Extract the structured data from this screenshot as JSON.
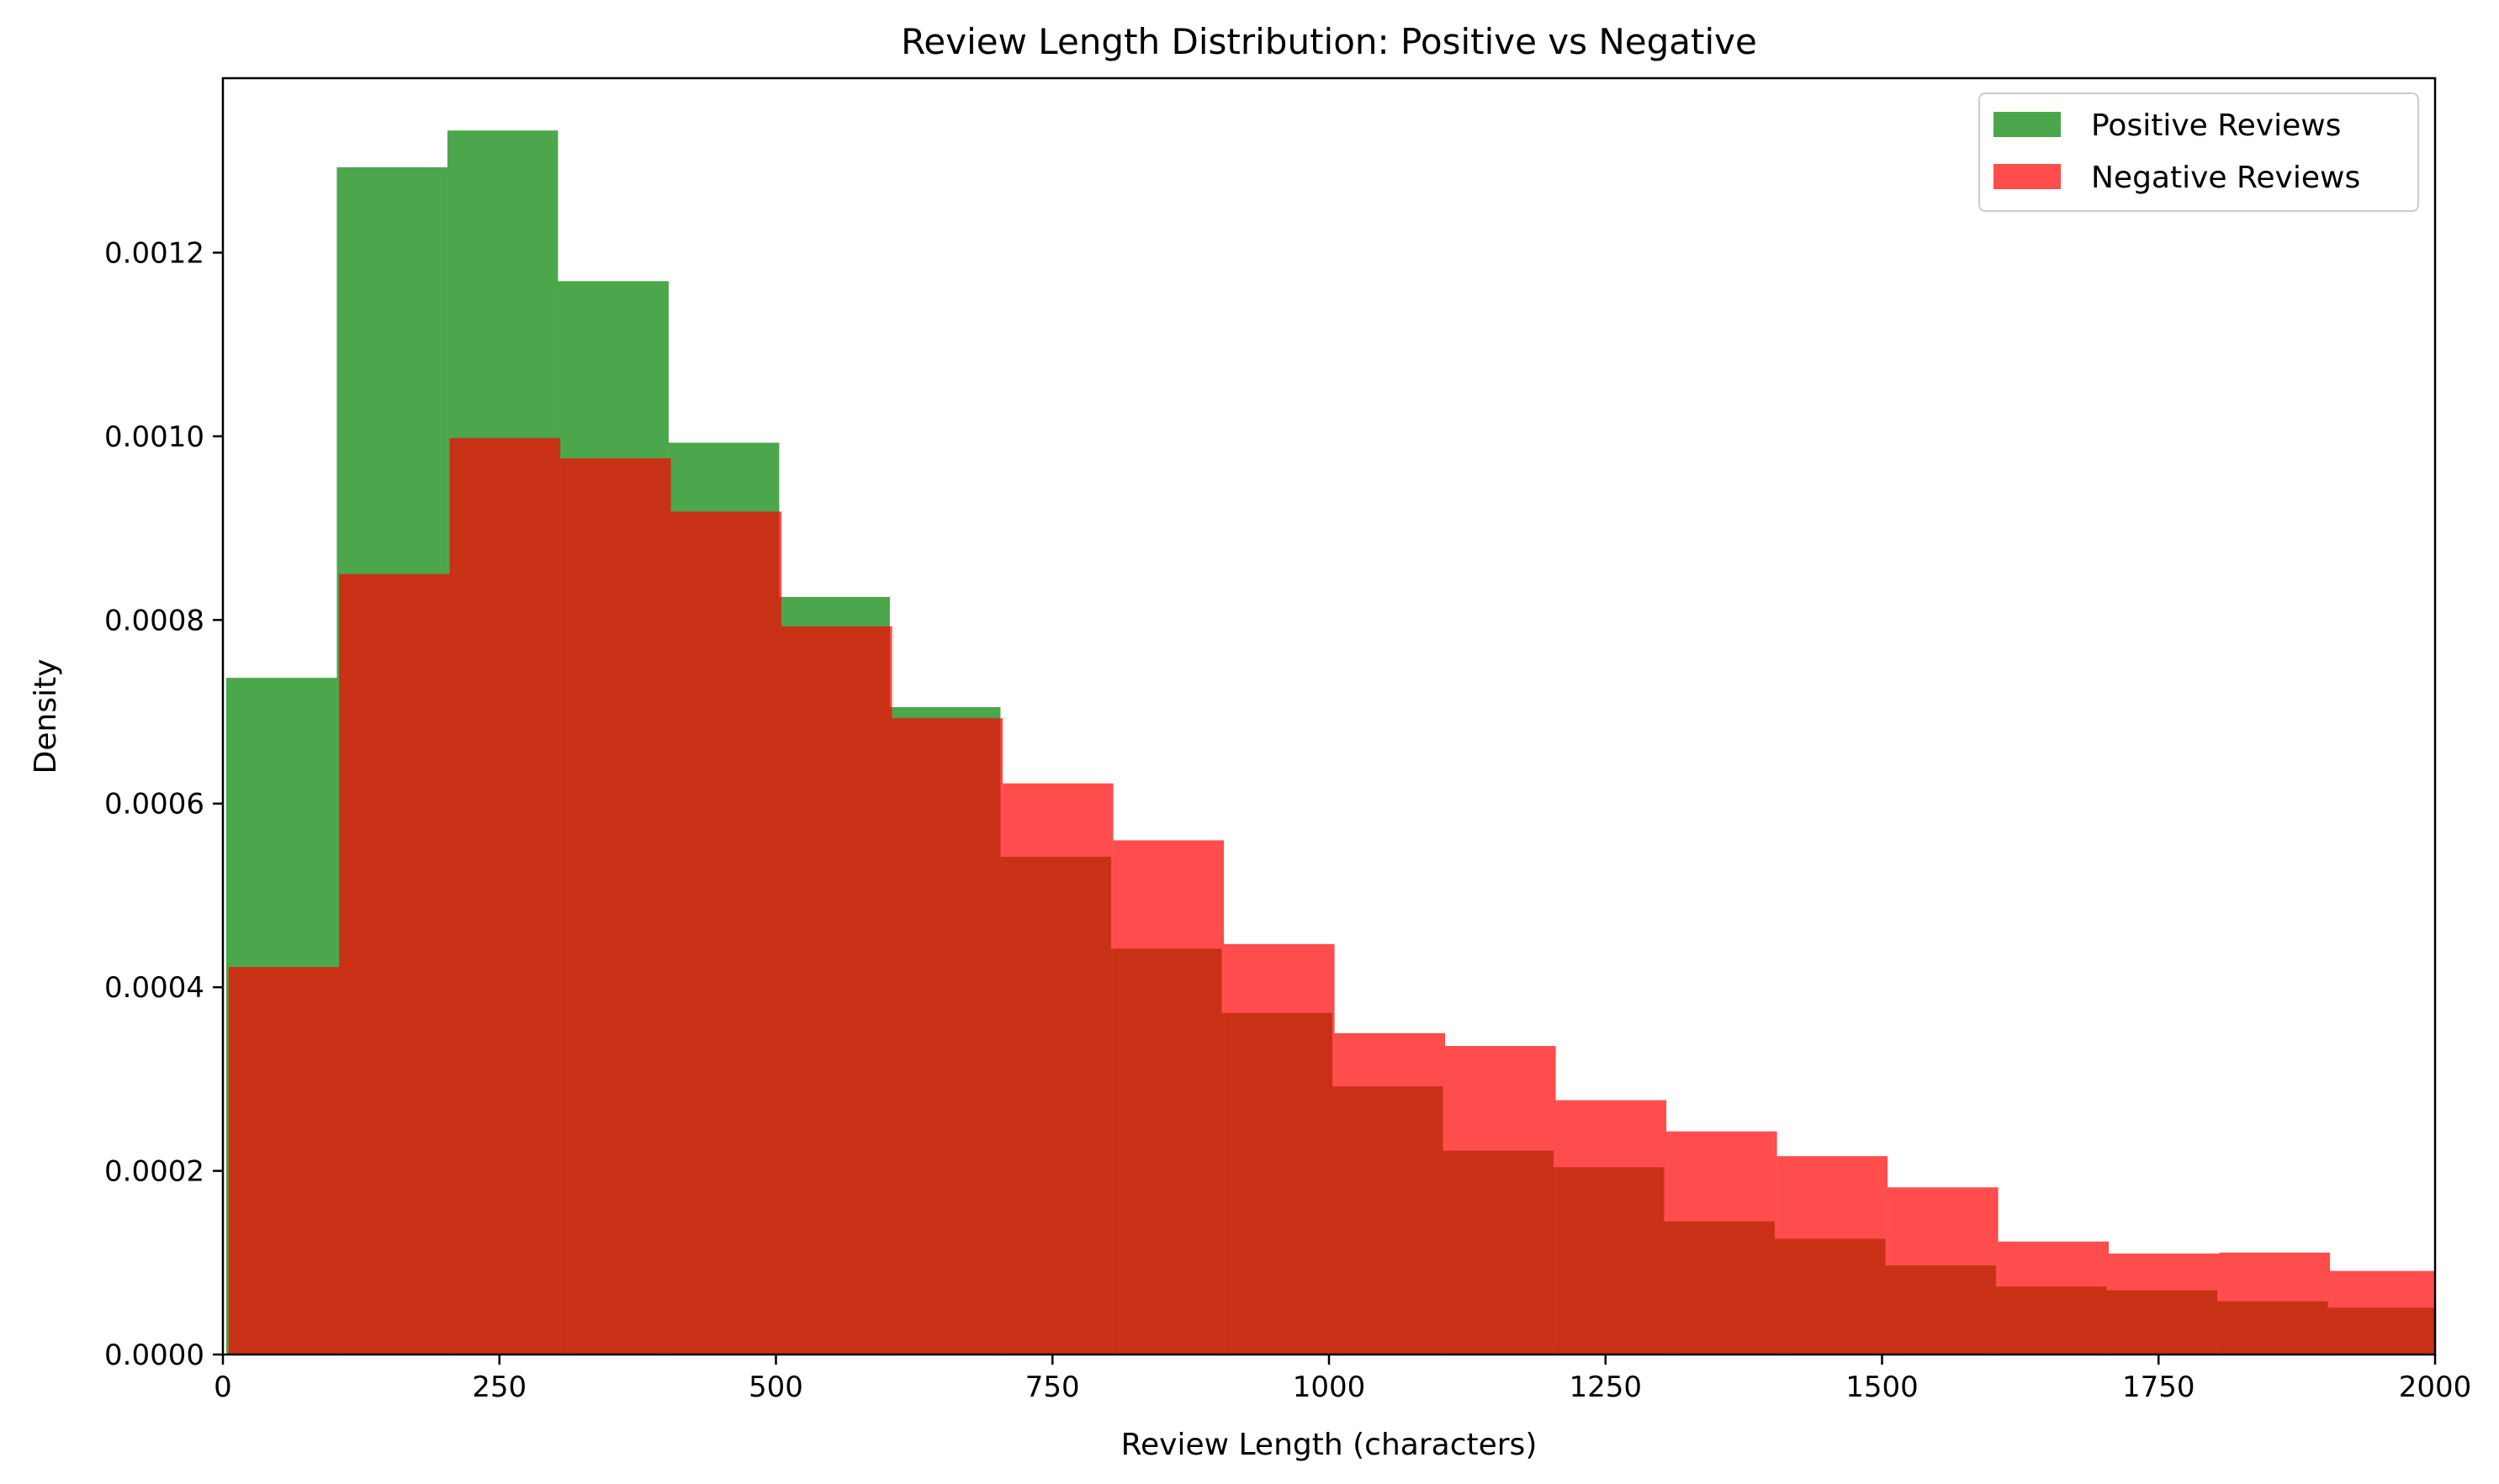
{
  "chart_data": {
    "type": "histogram",
    "title": "Review Length Distribution: Positive vs Negative",
    "xlabel": "Review Length (characters)",
    "ylabel": "Density",
    "xlim": [
      0,
      2000
    ],
    "ylim": [
      0,
      0.00139
    ],
    "x_ticks": [
      0,
      250,
      500,
      750,
      1000,
      1250,
      1500,
      1750,
      2000
    ],
    "x_tick_labels": [
      "0",
      "250",
      "500",
      "750",
      "1000",
      "1250",
      "1500",
      "1750",
      "2000"
    ],
    "y_ticks": [
      0,
      0.0002,
      0.0004,
      0.0006,
      0.0008,
      0.001,
      0.0012
    ],
    "y_tick_labels": [
      "0.0000",
      "0.0002",
      "0.0004",
      "0.0006",
      "0.0008",
      "0.0010",
      "0.0012"
    ],
    "grid": false,
    "legend_position": "top-right",
    "series": [
      {
        "name": "Positive Reviews",
        "color": "#008000",
        "opacity": 0.7,
        "bins": [
          [
            3,
            103,
            0.000737
          ],
          [
            103,
            203,
            0.001293
          ],
          [
            203,
            303,
            0.001333
          ],
          [
            303,
            403,
            0.001169
          ],
          [
            403,
            503,
            0.000993
          ],
          [
            503,
            603,
            0.000825
          ],
          [
            603,
            703,
            0.000705
          ],
          [
            703,
            803,
            0.000542
          ],
          [
            803,
            903,
            0.000442
          ],
          [
            903,
            1003,
            0.000372
          ],
          [
            1003,
            1103,
            0.000292
          ],
          [
            1103,
            1203,
            0.000222
          ],
          [
            1203,
            1303,
            0.000204
          ],
          [
            1303,
            1403,
            0.000145
          ],
          [
            1403,
            1503,
            0.000126
          ],
          [
            1503,
            1603,
            9.7e-05
          ],
          [
            1603,
            1703,
            7.4e-05
          ],
          [
            1703,
            1803,
            7e-05
          ],
          [
            1803,
            1903,
            5.8e-05
          ],
          [
            1903,
            2003,
            5.1e-05
          ]
        ]
      },
      {
        "name": "Negative Reviews",
        "color": "#ff0000",
        "opacity": 0.7,
        "bins": [
          [
            5,
            105,
            0.000422
          ],
          [
            105,
            205,
            0.00085
          ],
          [
            205,
            305,
            0.000998
          ],
          [
            305,
            405,
            0.000976
          ],
          [
            405,
            505,
            0.000918
          ],
          [
            505,
            605,
            0.000793
          ],
          [
            605,
            705,
            0.000693
          ],
          [
            705,
            805,
            0.000622
          ],
          [
            805,
            905,
            0.00056
          ],
          [
            905,
            1005,
            0.000447
          ],
          [
            1005,
            1105,
            0.00035
          ],
          [
            1105,
            1205,
            0.000336
          ],
          [
            1205,
            1305,
            0.000277
          ],
          [
            1305,
            1405,
            0.000243
          ],
          [
            1405,
            1505,
            0.000216
          ],
          [
            1505,
            1605,
            0.000182
          ],
          [
            1605,
            1705,
            0.000123
          ],
          [
            1705,
            1805,
            0.00011
          ],
          [
            1805,
            1905,
            0.000111
          ],
          [
            1905,
            2005,
            9.1e-05
          ]
        ]
      }
    ]
  }
}
